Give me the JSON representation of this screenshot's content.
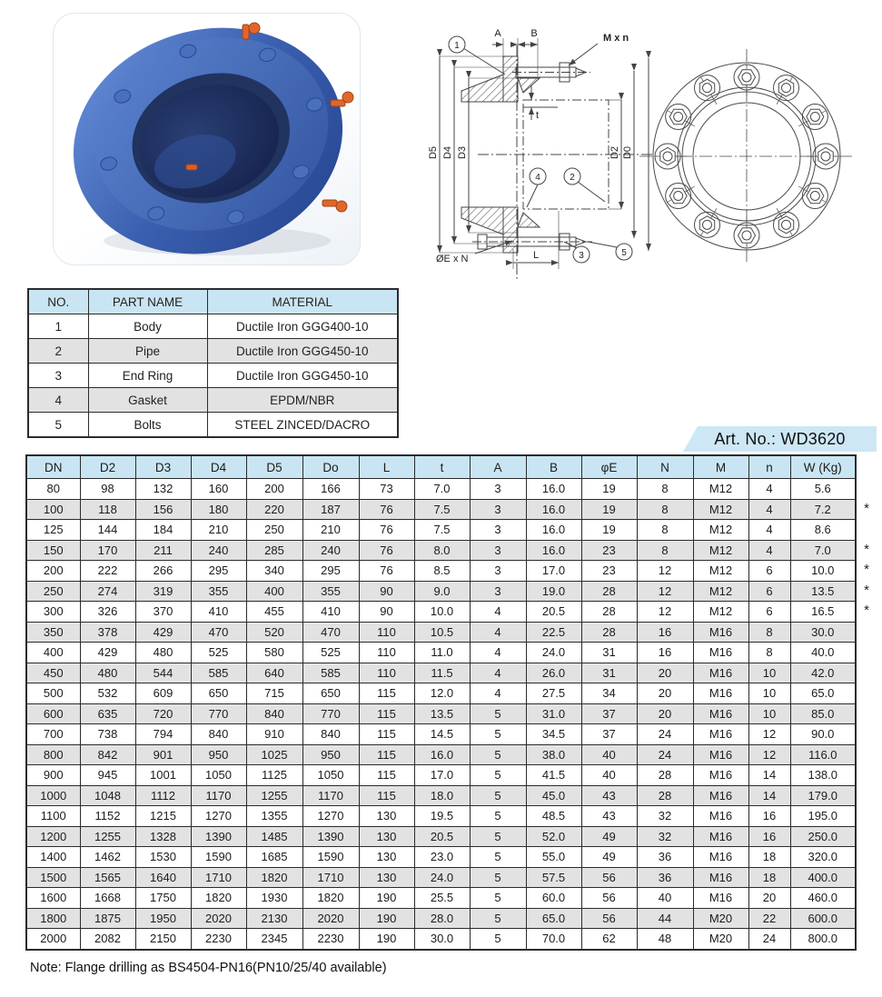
{
  "header": {
    "art_no": "Art. No.: WD3620"
  },
  "note": "Note: Flange drilling as BS4504-PN16(PN10/25/40 available)",
  "drawing": {
    "dim_a": "A",
    "dim_b": "B",
    "bolt_spec": "M x n",
    "d5": "D5",
    "d4": "D4",
    "d3": "D3",
    "d2": "D2",
    "d0": "D0",
    "wall": "t",
    "hole_spec": "ØE x N",
    "length": "L",
    "callouts": [
      "1",
      "2",
      "3",
      "4",
      "5"
    ]
  },
  "colors": {
    "header_blue": "#c9e5f3",
    "stripe_gray": "#e2e2e2",
    "flange_blue": "#3a5fb0",
    "bolt_orange": "#e2652a"
  },
  "parts_table": {
    "columns": [
      "NO.",
      "PART NAME",
      "MATERIAL"
    ],
    "rows": [
      [
        "1",
        "Body",
        "Ductile Iron GGG400-10"
      ],
      [
        "2",
        "Pipe",
        "Ductile Iron GGG450-10"
      ],
      [
        "3",
        "End Ring",
        "Ductile Iron GGG450-10"
      ],
      [
        "4",
        "Gasket",
        "EPDM/NBR"
      ],
      [
        "5",
        "Bolts",
        "STEEL ZINCED/DACRO"
      ]
    ]
  },
  "dimensions_table": {
    "columns": [
      "DN",
      "D2",
      "D3",
      "D4",
      "D5",
      "Do",
      "L",
      "t",
      "A",
      "B",
      "φE",
      "N",
      "M",
      "n",
      "W (Kg)"
    ],
    "star_symbol": "*",
    "starred_dns": [
      "100",
      "150",
      "200",
      "250",
      "300"
    ],
    "rows": [
      [
        "80",
        "98",
        "132",
        "160",
        "200",
        "166",
        "73",
        "7.0",
        "3",
        "16.0",
        "19",
        "8",
        "M12",
        "4",
        "5.6"
      ],
      [
        "100",
        "118",
        "156",
        "180",
        "220",
        "187",
        "76",
        "7.5",
        "3",
        "16.0",
        "19",
        "8",
        "M12",
        "4",
        "7.2"
      ],
      [
        "125",
        "144",
        "184",
        "210",
        "250",
        "210",
        "76",
        "7.5",
        "3",
        "16.0",
        "19",
        "8",
        "M12",
        "4",
        "8.6"
      ],
      [
        "150",
        "170",
        "211",
        "240",
        "285",
        "240",
        "76",
        "8.0",
        "3",
        "16.0",
        "23",
        "8",
        "M12",
        "4",
        "7.0"
      ],
      [
        "200",
        "222",
        "266",
        "295",
        "340",
        "295",
        "76",
        "8.5",
        "3",
        "17.0",
        "23",
        "12",
        "M12",
        "6",
        "10.0"
      ],
      [
        "250",
        "274",
        "319",
        "355",
        "400",
        "355",
        "90",
        "9.0",
        "3",
        "19.0",
        "28",
        "12",
        "M12",
        "6",
        "13.5"
      ],
      [
        "300",
        "326",
        "370",
        "410",
        "455",
        "410",
        "90",
        "10.0",
        "4",
        "20.5",
        "28",
        "12",
        "M12",
        "6",
        "16.5"
      ],
      [
        "350",
        "378",
        "429",
        "470",
        "520",
        "470",
        "110",
        "10.5",
        "4",
        "22.5",
        "28",
        "16",
        "M16",
        "8",
        "30.0"
      ],
      [
        "400",
        "429",
        "480",
        "525",
        "580",
        "525",
        "110",
        "11.0",
        "4",
        "24.0",
        "31",
        "16",
        "M16",
        "8",
        "40.0"
      ],
      [
        "450",
        "480",
        "544",
        "585",
        "640",
        "585",
        "110",
        "11.5",
        "4",
        "26.0",
        "31",
        "20",
        "M16",
        "10",
        "42.0"
      ],
      [
        "500",
        "532",
        "609",
        "650",
        "715",
        "650",
        "115",
        "12.0",
        "4",
        "27.5",
        "34",
        "20",
        "M16",
        "10",
        "65.0"
      ],
      [
        "600",
        "635",
        "720",
        "770",
        "840",
        "770",
        "115",
        "13.5",
        "5",
        "31.0",
        "37",
        "20",
        "M16",
        "10",
        "85.0"
      ],
      [
        "700",
        "738",
        "794",
        "840",
        "910",
        "840",
        "115",
        "14.5",
        "5",
        "34.5",
        "37",
        "24",
        "M16",
        "12",
        "90.0"
      ],
      [
        "800",
        "842",
        "901",
        "950",
        "1025",
        "950",
        "115",
        "16.0",
        "5",
        "38.0",
        "40",
        "24",
        "M16",
        "12",
        "116.0"
      ],
      [
        "900",
        "945",
        "1001",
        "1050",
        "1125",
        "1050",
        "115",
        "17.0",
        "5",
        "41.5",
        "40",
        "28",
        "M16",
        "14",
        "138.0"
      ],
      [
        "1000",
        "1048",
        "1112",
        "1170",
        "1255",
        "1170",
        "115",
        "18.0",
        "5",
        "45.0",
        "43",
        "28",
        "M16",
        "14",
        "179.0"
      ],
      [
        "1100",
        "1152",
        "1215",
        "1270",
        "1355",
        "1270",
        "130",
        "19.5",
        "5",
        "48.5",
        "43",
        "32",
        "M16",
        "16",
        "195.0"
      ],
      [
        "1200",
        "1255",
        "1328",
        "1390",
        "1485",
        "1390",
        "130",
        "20.5",
        "5",
        "52.0",
        "49",
        "32",
        "M16",
        "16",
        "250.0"
      ],
      [
        "1400",
        "1462",
        "1530",
        "1590",
        "1685",
        "1590",
        "130",
        "23.0",
        "5",
        "55.0",
        "49",
        "36",
        "M16",
        "18",
        "320.0"
      ],
      [
        "1500",
        "1565",
        "1640",
        "1710",
        "1820",
        "1710",
        "130",
        "24.0",
        "5",
        "57.5",
        "56",
        "36",
        "M16",
        "18",
        "400.0"
      ],
      [
        "1600",
        "1668",
        "1750",
        "1820",
        "1930",
        "1820",
        "190",
        "25.5",
        "5",
        "60.0",
        "56",
        "40",
        "M16",
        "20",
        "460.0"
      ],
      [
        "1800",
        "1875",
        "1950",
        "2020",
        "2130",
        "2020",
        "190",
        "28.0",
        "5",
        "65.0",
        "56",
        "44",
        "M20",
        "22",
        "600.0"
      ],
      [
        "2000",
        "2082",
        "2150",
        "2230",
        "2345",
        "2230",
        "190",
        "30.0",
        "5",
        "70.0",
        "62",
        "48",
        "M20",
        "24",
        "800.0"
      ]
    ]
  }
}
